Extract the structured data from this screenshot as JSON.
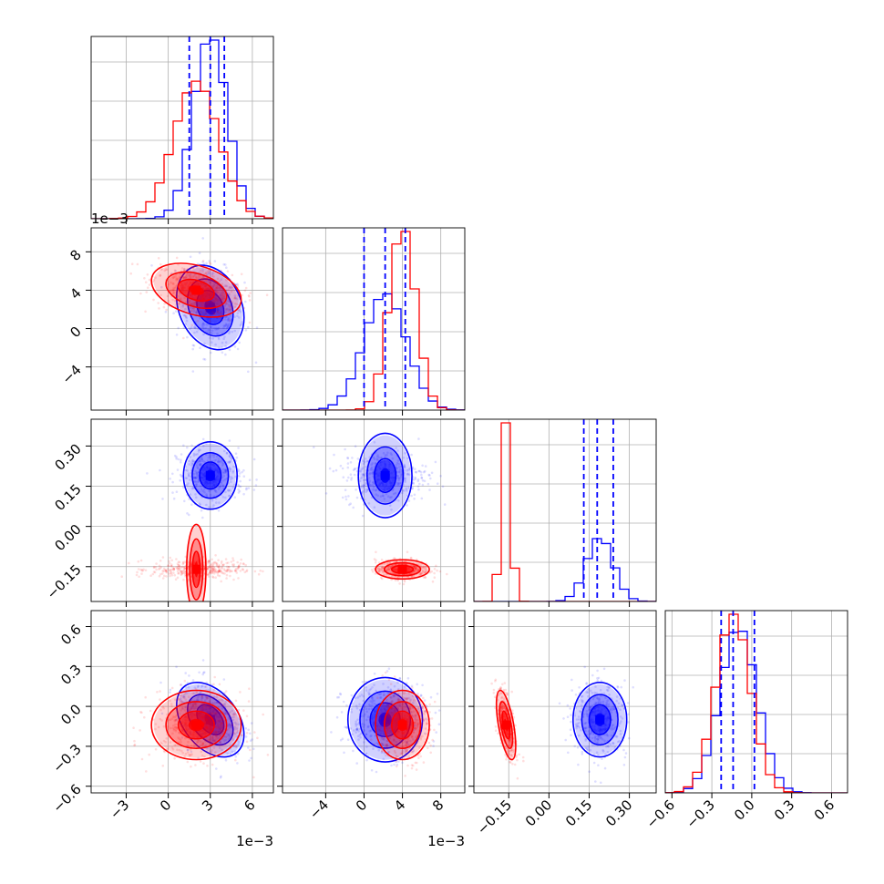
{
  "chart_data": {
    "type": "corner",
    "grid": true,
    "colors": {
      "series_a": "#0000ff",
      "series_b": "#ff0000"
    },
    "axis_limits": [
      [
        -5.5,
        7.5
      ],
      [
        -8.5,
        10.5
      ],
      [
        -0.28,
        0.4
      ],
      [
        -0.65,
        0.72
      ]
    ],
    "axis_ticks": [
      {
        "values": [
          -3,
          0,
          3,
          6
        ],
        "labels": [
          "−3",
          "0",
          "3",
          "6"
        ],
        "exponent": "1e−3"
      },
      {
        "values": [
          -4,
          0,
          4,
          8
        ],
        "labels": [
          "−4",
          "0",
          "4",
          "8"
        ],
        "exponent": "1e−3"
      },
      {
        "values": [
          -0.15,
          0.0,
          0.15,
          0.3
        ],
        "labels": [
          "−0.15",
          "0.00",
          "0.15",
          "0.30"
        ],
        "exponent": ""
      },
      {
        "values": [
          -0.6,
          -0.3,
          0.0,
          0.3,
          0.6
        ],
        "labels": [
          "−0.6",
          "−0.3",
          "0.0",
          "0.3",
          "0.6"
        ],
        "exponent": ""
      }
    ],
    "series": [
      {
        "color": "#0000ff",
        "means": [
          0.003,
          0.0022,
          0.19,
          -0.1
        ],
        "stds": [
          0.0012,
          0.0022,
          0.05,
          0.14
        ],
        "quantiles": [
          [
            0.0015,
            0.003,
            0.004
          ],
          [
            0.0,
            0.0022,
            0.0043
          ],
          [
            0.13,
            0.18,
            0.24
          ],
          [
            -0.23,
            -0.14,
            0.02
          ]
        ],
        "correlations": {
          "0-1": -0.25,
          "0-2": 0.0,
          "1-2": 0.0,
          "0-3": -0.4,
          "1-3": 0.0,
          "2-3": 0.0
        }
      },
      {
        "color": "#ff0000",
        "means": [
          0.002,
          0.004,
          -0.16,
          -0.14
        ],
        "stds": [
          0.0016,
          0.0014,
          0.018,
          0.13
        ],
        "correlations": {
          "0-1": -0.35,
          "0-2": 0.0,
          "1-2": 0.0,
          "0-3": 0.0,
          "1-3": 0.0,
          "2-3": -0.6
        }
      }
    ]
  }
}
